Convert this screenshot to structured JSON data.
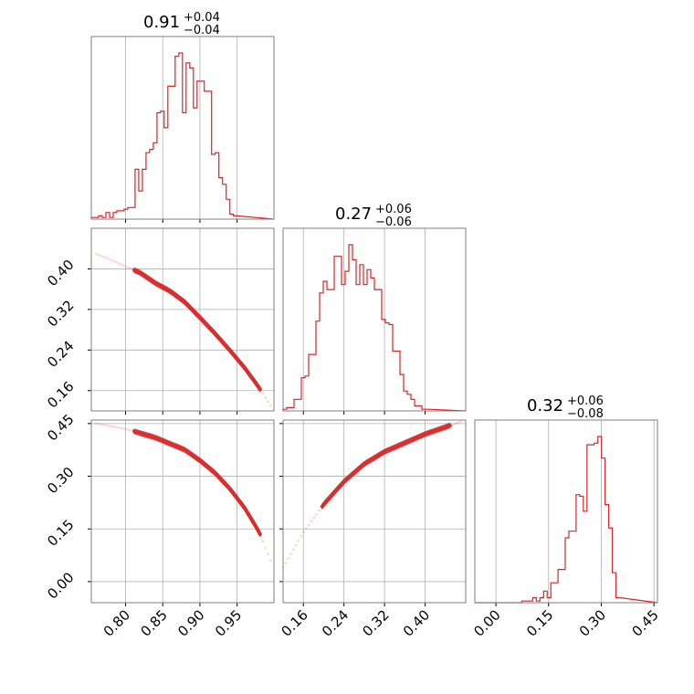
{
  "chart_data": {
    "type": "corner",
    "color": "#d62728",
    "grid": true,
    "parameters": [
      {
        "index": 0,
        "title": {
          "median": "0.91",
          "plus": "+0.04",
          "minus": "−0.04"
        },
        "range": [
          0.754,
          0.9995
        ],
        "ticks": [
          0.8,
          0.85,
          0.9,
          0.95
        ],
        "tick_labels": [
          "0.80",
          "0.85",
          "0.90",
          "0.95"
        ]
      },
      {
        "index": 1,
        "title": {
          "median": "0.27",
          "plus": "+0.06",
          "minus": "−0.06"
        },
        "range": [
          0.12,
          0.48
        ],
        "ticks": [
          0.16,
          0.24,
          0.32,
          0.4
        ],
        "tick_labels": [
          "0.16",
          "0.24",
          "0.32",
          "0.40"
        ]
      },
      {
        "index": 2,
        "title": {
          "median": "0.32",
          "plus": "+0.06",
          "minus": "−0.08"
        },
        "range": [
          -0.06,
          0.46
        ],
        "ticks": [
          0.0,
          0.15,
          0.3,
          0.45
        ],
        "tick_labels": [
          "0.00",
          "0.15",
          "0.30",
          "0.45"
        ]
      }
    ],
    "histograms": [
      {
        "param": 0,
        "bin_start": 0.754,
        "bin_width": 0.0049,
        "counts": [
          1,
          1,
          2,
          1,
          4,
          1,
          4,
          5,
          5,
          6,
          7,
          7,
          30,
          17,
          30,
          40,
          42,
          46,
          64,
          65,
          55,
          80,
          80,
          98,
          100,
          64,
          94,
          91,
          67,
          83,
          83,
          77,
          77,
          39,
          40,
          25,
          21,
          12,
          3,
          2
        ]
      },
      {
        "param": 1,
        "bin_start": 0.12,
        "bin_width": 0.0072,
        "counts": [
          1,
          2,
          2,
          7,
          7,
          20,
          21,
          34,
          34,
          54,
          71,
          78,
          73,
          73,
          93,
          93,
          76,
          84,
          100,
          91,
          76,
          88,
          76,
          85,
          80,
          73,
          73,
          55,
          53,
          52,
          36,
          36,
          22,
          12,
          10,
          7,
          3,
          3,
          1,
          1
        ]
      },
      {
        "param": 2,
        "bin_start": -0.06,
        "bin_width": 0.0103,
        "counts": [
          0,
          0,
          0,
          0,
          0,
          0,
          0,
          0,
          0,
          0,
          0,
          0,
          0,
          1,
          1,
          1,
          3,
          1,
          3,
          7,
          3,
          12,
          12,
          20,
          20,
          39,
          43,
          43,
          65,
          64,
          55,
          95,
          95,
          96,
          100,
          87,
          59,
          45,
          18,
          3
        ]
      }
    ],
    "pairs": [
      {
        "x_param": 0,
        "y_param": 1,
        "relation": "y = 1 - x - z, with z = c*x*y (strong negative correlation)",
        "points": [
          [
            0.76,
            0.43
          ],
          [
            0.78,
            0.418
          ],
          [
            0.8,
            0.405
          ],
          [
            0.82,
            0.392
          ],
          [
            0.84,
            0.372
          ],
          [
            0.86,
            0.356
          ],
          [
            0.88,
            0.334
          ],
          [
            0.9,
            0.304
          ],
          [
            0.92,
            0.273
          ],
          [
            0.94,
            0.24
          ],
          [
            0.96,
            0.205
          ],
          [
            0.98,
            0.165
          ],
          [
            0.995,
            0.13
          ]
        ]
      },
      {
        "x_param": 0,
        "y_param": 2,
        "relation": "negative curved ridge",
        "points": [
          [
            0.76,
            0.45
          ],
          [
            0.8,
            0.435
          ],
          [
            0.84,
            0.41
          ],
          [
            0.88,
            0.375
          ],
          [
            0.9,
            0.345
          ],
          [
            0.92,
            0.31
          ],
          [
            0.94,
            0.265
          ],
          [
            0.96,
            0.21
          ],
          [
            0.98,
            0.14
          ],
          [
            0.995,
            0.06
          ]
        ]
      },
      {
        "x_param": 1,
        "y_param": 2,
        "relation": "positive curved ridge",
        "points": [
          [
            0.12,
            0.04
          ],
          [
            0.14,
            0.09
          ],
          [
            0.16,
            0.14
          ],
          [
            0.2,
            0.22
          ],
          [
            0.24,
            0.285
          ],
          [
            0.28,
            0.335
          ],
          [
            0.32,
            0.37
          ],
          [
            0.36,
            0.395
          ],
          [
            0.4,
            0.42
          ],
          [
            0.44,
            0.44
          ],
          [
            0.47,
            0.455
          ]
        ]
      }
    ]
  }
}
